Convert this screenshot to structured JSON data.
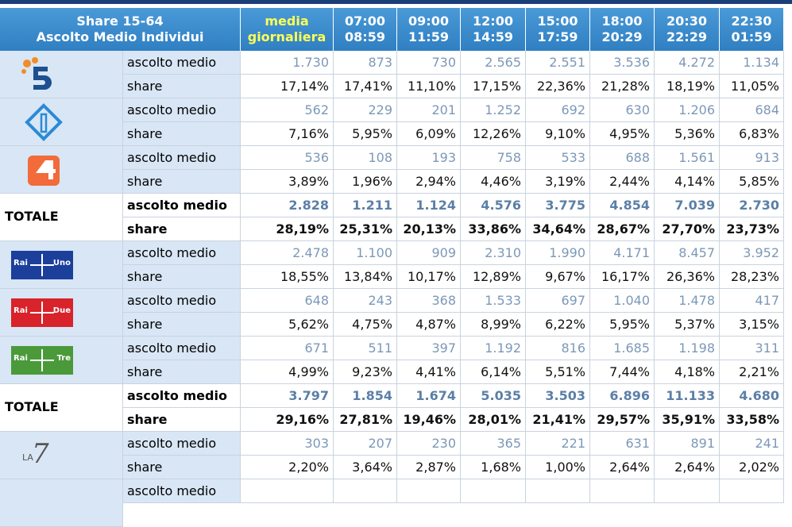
{
  "header": {
    "title": [
      "Share 15-64",
      "Ascolto Medio Individui"
    ],
    "columns": [
      [
        "media",
        "giornaliera"
      ],
      [
        "07:00",
        "08:59"
      ],
      [
        "09:00",
        "11:59"
      ],
      [
        "12:00",
        "14:59"
      ],
      [
        "15:00",
        "17:59"
      ],
      [
        "18:00",
        "20:29"
      ],
      [
        "20:30",
        "22:29"
      ],
      [
        "22:30",
        "01:59"
      ]
    ]
  },
  "groups": [
    {
      "rows": [
        {
          "label": "ascolto medio",
          "values": [
            "1.730",
            "873",
            "730",
            "2.565",
            "2.551",
            "3.536",
            "4.272",
            "1.134"
          ]
        },
        {
          "label": "share",
          "values": [
            "17,14%",
            "17,41%",
            "11,10%",
            "17,15%",
            "22,36%",
            "21,28%",
            "18,19%",
            "11,05%"
          ]
        }
      ]
    },
    {
      "rows": [
        {
          "label": "ascolto medio",
          "values": [
            "562",
            "229",
            "201",
            "1.252",
            "692",
            "630",
            "1.206",
            "684"
          ]
        },
        {
          "label": "share",
          "values": [
            "7,16%",
            "5,95%",
            "6,09%",
            "12,26%",
            "9,10%",
            "4,95%",
            "5,36%",
            "6,83%"
          ]
        }
      ]
    },
    {
      "rows": [
        {
          "label": "ascolto medio",
          "values": [
            "536",
            "108",
            "193",
            "758",
            "533",
            "688",
            "1.561",
            "913"
          ]
        },
        {
          "label": "share",
          "values": [
            "3,89%",
            "1,96%",
            "2,94%",
            "4,46%",
            "3,19%",
            "2,44%",
            "4,14%",
            "5,85%"
          ]
        }
      ]
    },
    {
      "label": "TOTALE",
      "rows": [
        {
          "label": "ascolto medio",
          "values": [
            "2.828",
            "1.211",
            "1.124",
            "4.576",
            "3.775",
            "4.854",
            "7.039",
            "2.730"
          ]
        },
        {
          "label": "share",
          "values": [
            "28,19%",
            "25,31%",
            "20,13%",
            "33,86%",
            "34,64%",
            "28,67%",
            "27,70%",
            "23,73%"
          ]
        }
      ]
    },
    {
      "logo_text": [
        "Rai",
        "Uno"
      ],
      "rows": [
        {
          "label": "ascolto medio",
          "values": [
            "2.478",
            "1.100",
            "909",
            "2.310",
            "1.990",
            "4.171",
            "8.457",
            "3.952"
          ]
        },
        {
          "label": "share",
          "values": [
            "18,55%",
            "13,84%",
            "10,17%",
            "12,89%",
            "9,67%",
            "16,17%",
            "26,36%",
            "28,23%"
          ]
        }
      ]
    },
    {
      "logo_text": [
        "Rai",
        "Due"
      ],
      "rows": [
        {
          "label": "ascolto medio",
          "values": [
            "648",
            "243",
            "368",
            "1.533",
            "697",
            "1.040",
            "1.478",
            "417"
          ]
        },
        {
          "label": "share",
          "values": [
            "5,62%",
            "4,75%",
            "4,87%",
            "8,99%",
            "6,22%",
            "5,95%",
            "5,37%",
            "3,15%"
          ]
        }
      ]
    },
    {
      "logo_text": [
        "Rai",
        "Tre"
      ],
      "rows": [
        {
          "label": "ascolto medio",
          "values": [
            "671",
            "511",
            "397",
            "1.192",
            "816",
            "1.685",
            "1.198",
            "311"
          ]
        },
        {
          "label": "share",
          "values": [
            "4,99%",
            "9,23%",
            "4,41%",
            "6,14%",
            "5,51%",
            "7,44%",
            "4,18%",
            "2,21%"
          ]
        }
      ]
    },
    {
      "label": "TOTALE",
      "rows": [
        {
          "label": "ascolto medio",
          "values": [
            "3.797",
            "1.854",
            "1.674",
            "5.035",
            "3.503",
            "6.896",
            "11.133",
            "4.680"
          ]
        },
        {
          "label": "share",
          "values": [
            "29,16%",
            "27,81%",
            "19,46%",
            "28,01%",
            "21,41%",
            "29,57%",
            "35,91%",
            "33,58%"
          ]
        }
      ]
    },
    {
      "logo_text": [
        "LA",
        "7"
      ],
      "rows": [
        {
          "label": "ascolto medio",
          "values": [
            "303",
            "207",
            "230",
            "365",
            "221",
            "631",
            "891",
            "241"
          ]
        },
        {
          "label": "share",
          "values": [
            "2,20%",
            "3,64%",
            "2,87%",
            "1,68%",
            "1,00%",
            "2,64%",
            "2,64%",
            "2,02%"
          ]
        }
      ]
    },
    {
      "rows": [
        {
          "label": "ascolto medio",
          "values": []
        }
      ]
    }
  ]
}
